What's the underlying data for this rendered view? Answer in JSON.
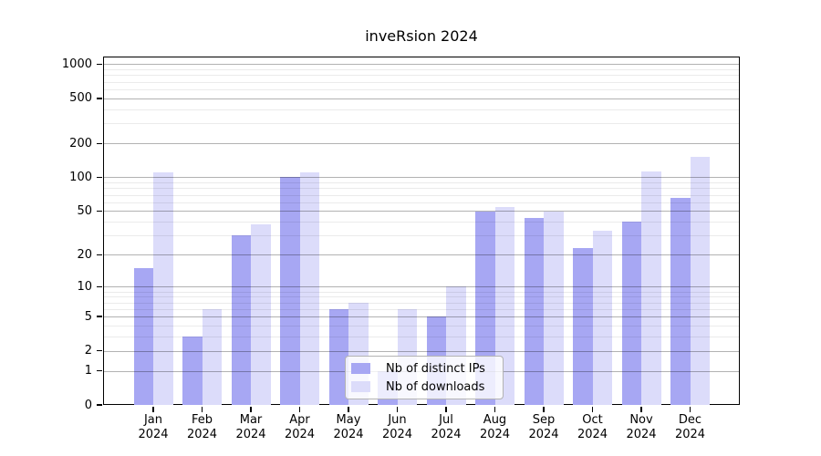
{
  "chart_data": {
    "type": "bar",
    "title": "inveRsion 2024",
    "months": [
      "Jan",
      "Feb",
      "Mar",
      "Apr",
      "May",
      "Jun",
      "Jul",
      "Aug",
      "Sep",
      "Oct",
      "Nov",
      "Dec"
    ],
    "year": "2024",
    "series": [
      {
        "name": "Nb of distinct IPs",
        "color": "#a7a7f3",
        "values": [
          15,
          3,
          30,
          101,
          6,
          1,
          5,
          49,
          43,
          23,
          40,
          66
        ]
      },
      {
        "name": "Nb of downloads",
        "color": "#dcdcfa",
        "values": [
          110,
          6,
          38,
          111,
          7,
          6,
          10,
          54,
          49,
          33,
          113,
          152
        ]
      }
    ],
    "yscale": "log10(value+1)",
    "yticks": [
      0,
      1,
      2,
      5,
      10,
      20,
      50,
      100,
      200,
      500,
      1000
    ],
    "minor_yticks": [
      3,
      4,
      6,
      7,
      8,
      9,
      30,
      40,
      60,
      70,
      80,
      90,
      300,
      400,
      600,
      700,
      800,
      900
    ],
    "ylim": [
      0,
      1170
    ],
    "grid": {
      "major": true,
      "minor": true,
      "orientation": "horizontal"
    },
    "legend": {
      "position": "lower-center-inside"
    }
  },
  "colors": {
    "major_grid": "rgba(0,0,0,0.30)",
    "minor_grid": "rgba(0,0,0,0.08)",
    "frame": "#000000",
    "legend_border": "#b3b3b3",
    "legend_background": "rgba(255,255,255,0.8)"
  }
}
